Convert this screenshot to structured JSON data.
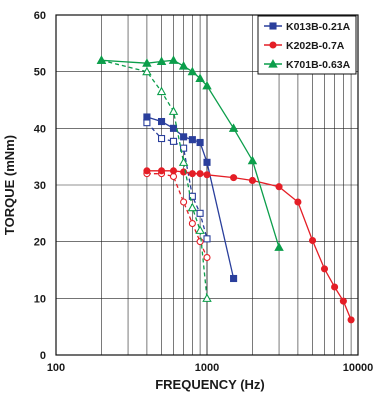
{
  "chart_data": {
    "type": "line",
    "xlabel": "FREQUENCY (Hz)",
    "ylabel": "TORQUE (mNm)",
    "x_scale": "log",
    "xlim": [
      100,
      10000
    ],
    "ylim": [
      0,
      60
    ],
    "x_ticks": [
      "100",
      "1000",
      "10000"
    ],
    "y_ticks": [
      "0",
      "10",
      "20",
      "30",
      "40",
      "50",
      "60"
    ],
    "grid": "on",
    "legend_position": "top-right",
    "series": [
      {
        "name": "K013B-0.21A",
        "color": "#2a3f9c",
        "marker": "square",
        "pullout": {
          "x": [
            400,
            500,
            600,
            700,
            800,
            900,
            1000,
            1500
          ],
          "y": [
            42,
            41.2,
            40,
            38.5,
            38,
            37.5,
            34,
            13.5
          ]
        },
        "pullin": {
          "x": [
            400,
            500,
            600,
            700,
            800,
            900,
            1000
          ],
          "y": [
            41,
            38.2,
            37.7,
            36.5,
            28,
            25,
            20.5
          ]
        }
      },
      {
        "name": "K202B-0.7A",
        "color": "#e41e26",
        "marker": "circle",
        "pullout": {
          "x": [
            400,
            500,
            600,
            700,
            800,
            900,
            1000,
            1500,
            2000,
            3000,
            4000,
            5000,
            6000,
            7000,
            8000,
            9000
          ],
          "y": [
            32.5,
            32.5,
            32.5,
            32.3,
            32,
            32,
            31.8,
            31.3,
            30.8,
            29.7,
            27,
            20.2,
            15.2,
            12,
            9.5,
            6.2
          ]
        },
        "pullin": {
          "x": [
            400,
            500,
            600,
            700,
            800,
            900,
            1000
          ],
          "y": [
            32,
            32,
            31.5,
            27,
            23.2,
            20,
            17.2
          ]
        }
      },
      {
        "name": "K701B-0.63A",
        "color": "#0c9e4b",
        "marker": "triangle",
        "pullout": {
          "x": [
            200,
            400,
            500,
            600,
            700,
            800,
            900,
            1000,
            1500,
            2000,
            3000
          ],
          "y": [
            52,
            51.5,
            51.8,
            52,
            51,
            50,
            48.8,
            47.5,
            40,
            34.3,
            19
          ]
        },
        "pullin": {
          "x": [
            200,
            400,
            500,
            600,
            700,
            800,
            900,
            1000
          ],
          "y": [
            52,
            50,
            46.5,
            43,
            34,
            26,
            22,
            10
          ]
        }
      }
    ]
  }
}
